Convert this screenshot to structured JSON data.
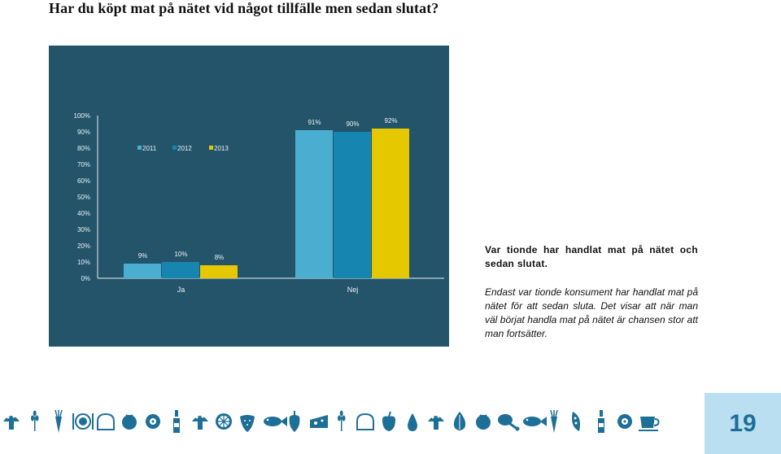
{
  "page": {
    "title": "Har du köpt mat på nätet vid något tillfälle men sedan slutat?",
    "page_number": "19"
  },
  "side_text": {
    "lead": "Var tionde har handlat mat på nätet och sedan slutat.",
    "body": "Endast var tionde konsument har handlat mat på nätet för att sedan sluta. Det visar att när man väl börjat handla mat på nätet är chansen stor att man fortsätter."
  },
  "colors": {
    "panel_background": "#245469",
    "series_2011": "#4aaed0",
    "series_2012": "#1686b0",
    "series_2013": "#e5c800",
    "icons": "#1e6f97",
    "page_box": "#b9dff0"
  },
  "icons": [
    "mushroom-icon",
    "wheat-icon",
    "carrot-icon",
    "plate-cutlery-icon",
    "bread-icon",
    "tomato-icon",
    "cut-fruit-icon",
    "bottle-icon",
    "mushroom-icon",
    "orange-slice-icon",
    "strawberry-icon",
    "fish-icon",
    "pepper-icon",
    "cheese-icon",
    "wheat-icon",
    "bread-icon",
    "apple-icon",
    "pear-icon",
    "mushroom-icon",
    "onion-icon",
    "tomato-icon",
    "drumstick-icon",
    "fish-icon",
    "carrot-icon",
    "pea-pod-icon",
    "bottle-icon",
    "cut-fruit-icon",
    "cup-icon"
  ],
  "chart_data": {
    "type": "bar",
    "categories": [
      "Ja",
      "Nej"
    ],
    "series": [
      {
        "name": "2011",
        "values": [
          9,
          91
        ],
        "labels": [
          "9%",
          "91%"
        ]
      },
      {
        "name": "2012",
        "values": [
          10,
          90
        ],
        "labels": [
          "10%",
          "90%"
        ]
      },
      {
        "name": "2013",
        "values": [
          8,
          92
        ],
        "labels": [
          "8%",
          "92%"
        ]
      }
    ],
    "yticks": [
      "0%",
      "10%",
      "20%",
      "30%",
      "40%",
      "50%",
      "60%",
      "70%",
      "80%",
      "90%",
      "100%"
    ],
    "ylim": [
      0,
      100
    ],
    "legend_position": "top-left",
    "grid": false
  }
}
